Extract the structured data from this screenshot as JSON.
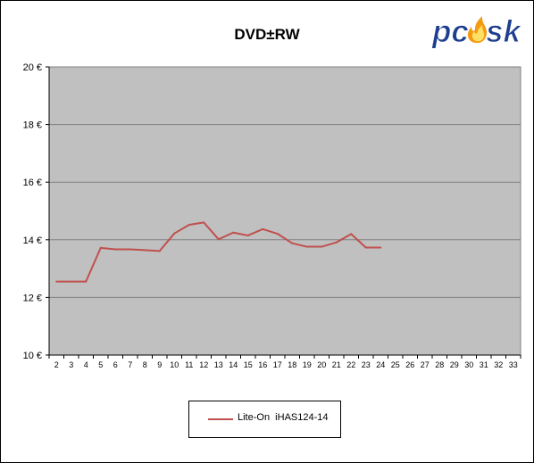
{
  "chart_data": {
    "type": "line",
    "title": "DVD±RW",
    "xlabel": "",
    "ylabel": "",
    "categories": [
      "2",
      "3",
      "4",
      "5",
      "6",
      "7",
      "8",
      "9",
      "10",
      "11",
      "12",
      "13",
      "14",
      "15",
      "16",
      "17",
      "18",
      "19",
      "20",
      "21",
      "22",
      "23",
      "24",
      "25",
      "26",
      "27",
      "28",
      "29",
      "30",
      "31",
      "32",
      "33"
    ],
    "series": [
      {
        "name": "Lite-On  iHAS124-14",
        "color": "#c0504d",
        "values": [
          12.55,
          12.55,
          12.55,
          13.72,
          13.67,
          13.67,
          13.64,
          13.61,
          14.22,
          14.52,
          14.6,
          14.02,
          14.25,
          14.15,
          14.37,
          14.21,
          13.88,
          13.76,
          13.76,
          13.91,
          14.2,
          13.73,
          13.73,
          null,
          null,
          null,
          null,
          null,
          null,
          null,
          null,
          null
        ]
      }
    ],
    "ylim": [
      10,
      20
    ],
    "yticks": [
      10,
      12,
      14,
      16,
      18,
      20
    ],
    "ytick_labels": [
      "10 €",
      "12 €",
      "14 €",
      "16 €",
      "18 €",
      "20 €"
    ],
    "grid": true,
    "plot_background": "#c0c0c0",
    "legend_position": "bottom"
  },
  "logo_text": "pcask"
}
